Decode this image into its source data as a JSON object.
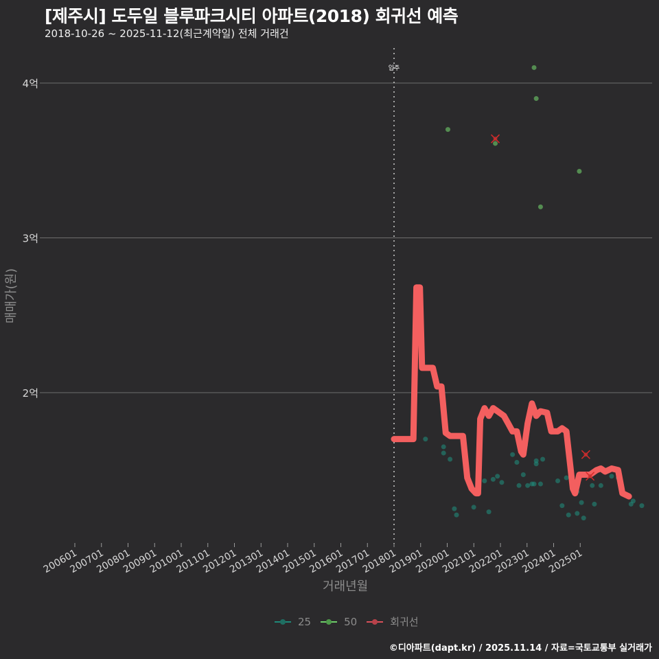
{
  "header": {
    "title": "[제주시] 도두일 블루파크시티 아파트(2018) 회귀선 예측",
    "subtitle": "2018-10-26 ~ 2025-11-12(최근계약일) 전체 거래건"
  },
  "axes": {
    "ylabel": "매매가(원)",
    "xlabel": "거래년월",
    "annotation": "입주"
  },
  "legend": [
    {
      "label": "25",
      "color": "#1f8a7a"
    },
    {
      "label": "50",
      "color": "#6fcf6a"
    },
    {
      "label": "회귀선",
      "color": "#f35f5f"
    }
  ],
  "footer": "©디아파트(dapt.kr) / 2025.11.14 / 자료=국토교통부 실거래가",
  "colors": {
    "background": "#2b2a2c",
    "grid": "#6e6e6e",
    "regression": "#f35f5f",
    "series25": "#1f8a7a",
    "series50": "#6fcf6a",
    "predicted": "#d42a2a"
  },
  "chart_data": {
    "type": "scatter",
    "title": "[제주시] 도두일 블루파크시티 아파트(2018) 회귀선 예측",
    "subtitle": "2018-10-26 ~ 2025-11-12(최근계약일) 전체 거래건",
    "xlabel": "거래년월",
    "ylabel": "매매가(원)",
    "x_ticks": [
      "200601",
      "200701",
      "200801",
      "200901",
      "201001",
      "201101",
      "201201",
      "201301",
      "201401",
      "201501",
      "201601",
      "201701",
      "201801",
      "201901",
      "202001",
      "202101",
      "202201",
      "202301",
      "202401",
      "202501"
    ],
    "y_ticks": [
      "2억",
      "3억",
      "4억"
    ],
    "y_tick_values": [
      200000000,
      300000000,
      400000000
    ],
    "ylim": [
      100000000,
      420000000
    ],
    "xlim": [
      "200501",
      "202612"
    ],
    "grid": true,
    "legend_position": "bottom",
    "vline": {
      "x": 2018.0,
      "label": "입주",
      "style": "dotted"
    },
    "series": [
      {
        "name": "25",
        "type": "scatter",
        "points": [
          [
            2018.73,
            1.7
          ],
          [
            2019.15,
            1.65
          ],
          [
            2019.15,
            1.61
          ],
          [
            2019.3,
            1.57
          ],
          [
            2019.4,
            1.25
          ],
          [
            2019.45,
            1.21
          ],
          [
            2019.85,
            1.26
          ],
          [
            2020.1,
            1.43
          ],
          [
            2020.2,
            1.23
          ],
          [
            2020.3,
            1.44
          ],
          [
            2020.4,
            1.46
          ],
          [
            2020.5,
            1.42
          ],
          [
            2020.75,
            1.6
          ],
          [
            2020.85,
            1.55
          ],
          [
            2020.9,
            1.4
          ],
          [
            2021.0,
            1.47
          ],
          [
            2021.05,
            1.66
          ],
          [
            2021.1,
            1.4
          ],
          [
            2021.2,
            1.41
          ],
          [
            2021.25,
            1.41
          ],
          [
            2021.3,
            1.56
          ],
          [
            2021.3,
            1.54
          ],
          [
            2021.4,
            1.41
          ],
          [
            2021.45,
            1.57
          ],
          [
            2021.8,
            1.43
          ],
          [
            2021.9,
            1.27
          ],
          [
            2022.0,
            1.45
          ],
          [
            2022.05,
            1.21
          ],
          [
            2022.25,
            1.36
          ],
          [
            2022.25,
            1.22
          ],
          [
            2022.35,
            1.29
          ],
          [
            2022.4,
            1.19
          ],
          [
            2022.6,
            1.4
          ],
          [
            2022.65,
            1.28
          ],
          [
            2022.8,
            1.4
          ],
          [
            2022.9,
            1.5
          ],
          [
            2023.05,
            1.46
          ],
          [
            2023.2,
            1.45
          ],
          [
            2023.4,
            1.34
          ],
          [
            2023.5,
            1.28
          ],
          [
            2023.55,
            1.3
          ],
          [
            2023.75,
            1.27
          ]
        ]
      },
      {
        "name": "50",
        "type": "scatter",
        "points": [
          [
            2019.25,
            3.7
          ],
          [
            2020.35,
            3.61
          ],
          [
            2021.25,
            4.1
          ],
          [
            2021.3,
            3.9
          ],
          [
            2021.4,
            3.2
          ],
          [
            2022.3,
            3.43
          ]
        ]
      },
      {
        "name": "회귀선",
        "type": "line",
        "points": [
          [
            2018.0,
            1.7
          ],
          [
            2018.25,
            1.7
          ],
          [
            2018.45,
            1.7
          ],
          [
            2018.52,
            2.68
          ],
          [
            2018.6,
            2.68
          ],
          [
            2018.65,
            2.16
          ],
          [
            2018.9,
            2.16
          ],
          [
            2019.0,
            2.04
          ],
          [
            2019.1,
            2.04
          ],
          [
            2019.2,
            1.74
          ],
          [
            2019.3,
            1.72
          ],
          [
            2019.45,
            1.72
          ],
          [
            2019.6,
            1.72
          ],
          [
            2019.7,
            1.45
          ],
          [
            2019.8,
            1.38
          ],
          [
            2019.9,
            1.35
          ],
          [
            2019.95,
            1.35
          ],
          [
            2020.0,
            1.83
          ],
          [
            2020.1,
            1.9
          ],
          [
            2020.2,
            1.85
          ],
          [
            2020.3,
            1.9
          ],
          [
            2020.45,
            1.87
          ],
          [
            2020.55,
            1.85
          ],
          [
            2020.65,
            1.8
          ],
          [
            2020.75,
            1.75
          ],
          [
            2020.85,
            1.75
          ],
          [
            2020.95,
            1.62
          ],
          [
            2021.0,
            1.6
          ],
          [
            2021.1,
            1.8
          ],
          [
            2021.2,
            1.93
          ],
          [
            2021.3,
            1.85
          ],
          [
            2021.4,
            1.88
          ],
          [
            2021.55,
            1.87
          ],
          [
            2021.65,
            1.75
          ],
          [
            2021.8,
            1.75
          ],
          [
            2021.9,
            1.77
          ],
          [
            2022.0,
            1.75
          ],
          [
            2022.15,
            1.38
          ],
          [
            2022.2,
            1.35
          ],
          [
            2022.3,
            1.47
          ],
          [
            2022.45,
            1.47
          ],
          [
            2022.55,
            1.47
          ],
          [
            2022.7,
            1.5
          ],
          [
            2022.8,
            1.51
          ],
          [
            2022.9,
            1.49
          ],
          [
            2023.05,
            1.51
          ],
          [
            2023.2,
            1.5
          ],
          [
            2023.3,
            1.35
          ],
          [
            2023.45,
            1.33
          ]
        ]
      },
      {
        "name": "예측",
        "type": "marker-x",
        "points": [
          [
            2020.35,
            3.64
          ],
          [
            2022.45,
            1.6
          ],
          [
            2022.55,
            1.46
          ]
        ]
      }
    ],
    "value_unit": "억원"
  }
}
